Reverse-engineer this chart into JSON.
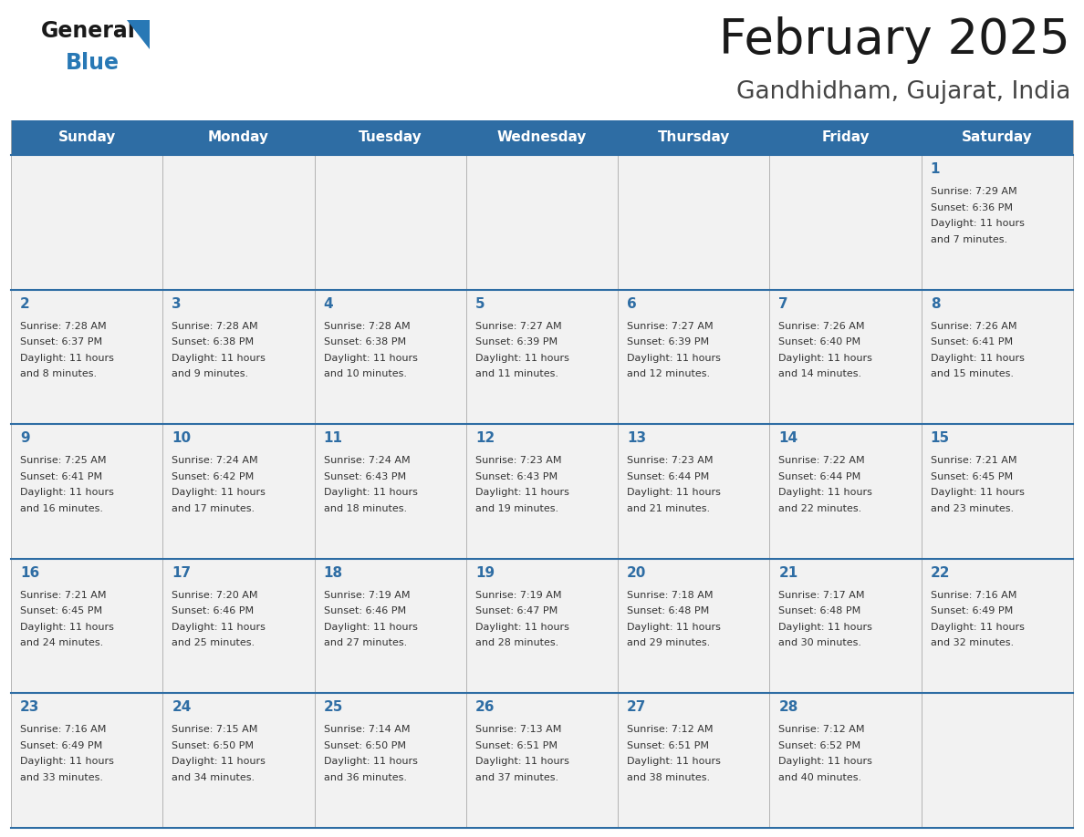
{
  "title": "February 2025",
  "subtitle": "Gandhidham, Gujarat, India",
  "header_bg": "#2E6DA4",
  "header_text_color": "#FFFFFF",
  "cell_bg": "#F2F2F2",
  "day_number_color": "#2E6DA4",
  "text_color": "#333333",
  "border_color": "#2E6DA4",
  "separator_color": "#AAAAAA",
  "days_of_week": [
    "Sunday",
    "Monday",
    "Tuesday",
    "Wednesday",
    "Thursday",
    "Friday",
    "Saturday"
  ],
  "logo_general_color": "#1A1A1A",
  "logo_blue_color": "#2878B5",
  "logo_triangle_color": "#2878B5",
  "calendar": [
    [
      {
        "day": "",
        "sunrise": "",
        "sunset": "",
        "daylight": ""
      },
      {
        "day": "",
        "sunrise": "",
        "sunset": "",
        "daylight": ""
      },
      {
        "day": "",
        "sunrise": "",
        "sunset": "",
        "daylight": ""
      },
      {
        "day": "",
        "sunrise": "",
        "sunset": "",
        "daylight": ""
      },
      {
        "day": "",
        "sunrise": "",
        "sunset": "",
        "daylight": ""
      },
      {
        "day": "",
        "sunrise": "",
        "sunset": "",
        "daylight": ""
      },
      {
        "day": "1",
        "sunrise": "7:29 AM",
        "sunset": "6:36 PM",
        "daylight": "11 hours and 7 minutes."
      }
    ],
    [
      {
        "day": "2",
        "sunrise": "7:28 AM",
        "sunset": "6:37 PM",
        "daylight": "11 hours and 8 minutes."
      },
      {
        "day": "3",
        "sunrise": "7:28 AM",
        "sunset": "6:38 PM",
        "daylight": "11 hours and 9 minutes."
      },
      {
        "day": "4",
        "sunrise": "7:28 AM",
        "sunset": "6:38 PM",
        "daylight": "11 hours and 10 minutes."
      },
      {
        "day": "5",
        "sunrise": "7:27 AM",
        "sunset": "6:39 PM",
        "daylight": "11 hours and 11 minutes."
      },
      {
        "day": "6",
        "sunrise": "7:27 AM",
        "sunset": "6:39 PM",
        "daylight": "11 hours and 12 minutes."
      },
      {
        "day": "7",
        "sunrise": "7:26 AM",
        "sunset": "6:40 PM",
        "daylight": "11 hours and 14 minutes."
      },
      {
        "day": "8",
        "sunrise": "7:26 AM",
        "sunset": "6:41 PM",
        "daylight": "11 hours and 15 minutes."
      }
    ],
    [
      {
        "day": "9",
        "sunrise": "7:25 AM",
        "sunset": "6:41 PM",
        "daylight": "11 hours and 16 minutes."
      },
      {
        "day": "10",
        "sunrise": "7:24 AM",
        "sunset": "6:42 PM",
        "daylight": "11 hours and 17 minutes."
      },
      {
        "day": "11",
        "sunrise": "7:24 AM",
        "sunset": "6:43 PM",
        "daylight": "11 hours and 18 minutes."
      },
      {
        "day": "12",
        "sunrise": "7:23 AM",
        "sunset": "6:43 PM",
        "daylight": "11 hours and 19 minutes."
      },
      {
        "day": "13",
        "sunrise": "7:23 AM",
        "sunset": "6:44 PM",
        "daylight": "11 hours and 21 minutes."
      },
      {
        "day": "14",
        "sunrise": "7:22 AM",
        "sunset": "6:44 PM",
        "daylight": "11 hours and 22 minutes."
      },
      {
        "day": "15",
        "sunrise": "7:21 AM",
        "sunset": "6:45 PM",
        "daylight": "11 hours and 23 minutes."
      }
    ],
    [
      {
        "day": "16",
        "sunrise": "7:21 AM",
        "sunset": "6:45 PM",
        "daylight": "11 hours and 24 minutes."
      },
      {
        "day": "17",
        "sunrise": "7:20 AM",
        "sunset": "6:46 PM",
        "daylight": "11 hours and 25 minutes."
      },
      {
        "day": "18",
        "sunrise": "7:19 AM",
        "sunset": "6:46 PM",
        "daylight": "11 hours and 27 minutes."
      },
      {
        "day": "19",
        "sunrise": "7:19 AM",
        "sunset": "6:47 PM",
        "daylight": "11 hours and 28 minutes."
      },
      {
        "day": "20",
        "sunrise": "7:18 AM",
        "sunset": "6:48 PM",
        "daylight": "11 hours and 29 minutes."
      },
      {
        "day": "21",
        "sunrise": "7:17 AM",
        "sunset": "6:48 PM",
        "daylight": "11 hours and 30 minutes."
      },
      {
        "day": "22",
        "sunrise": "7:16 AM",
        "sunset": "6:49 PM",
        "daylight": "11 hours and 32 minutes."
      }
    ],
    [
      {
        "day": "23",
        "sunrise": "7:16 AM",
        "sunset": "6:49 PM",
        "daylight": "11 hours and 33 minutes."
      },
      {
        "day": "24",
        "sunrise": "7:15 AM",
        "sunset": "6:50 PM",
        "daylight": "11 hours and 34 minutes."
      },
      {
        "day": "25",
        "sunrise": "7:14 AM",
        "sunset": "6:50 PM",
        "daylight": "11 hours and 36 minutes."
      },
      {
        "day": "26",
        "sunrise": "7:13 AM",
        "sunset": "6:51 PM",
        "daylight": "11 hours and 37 minutes."
      },
      {
        "day": "27",
        "sunrise": "7:12 AM",
        "sunset": "6:51 PM",
        "daylight": "11 hours and 38 minutes."
      },
      {
        "day": "28",
        "sunrise": "7:12 AM",
        "sunset": "6:52 PM",
        "daylight": "11 hours and 40 minutes."
      },
      {
        "day": "",
        "sunrise": "",
        "sunset": "",
        "daylight": ""
      }
    ]
  ]
}
